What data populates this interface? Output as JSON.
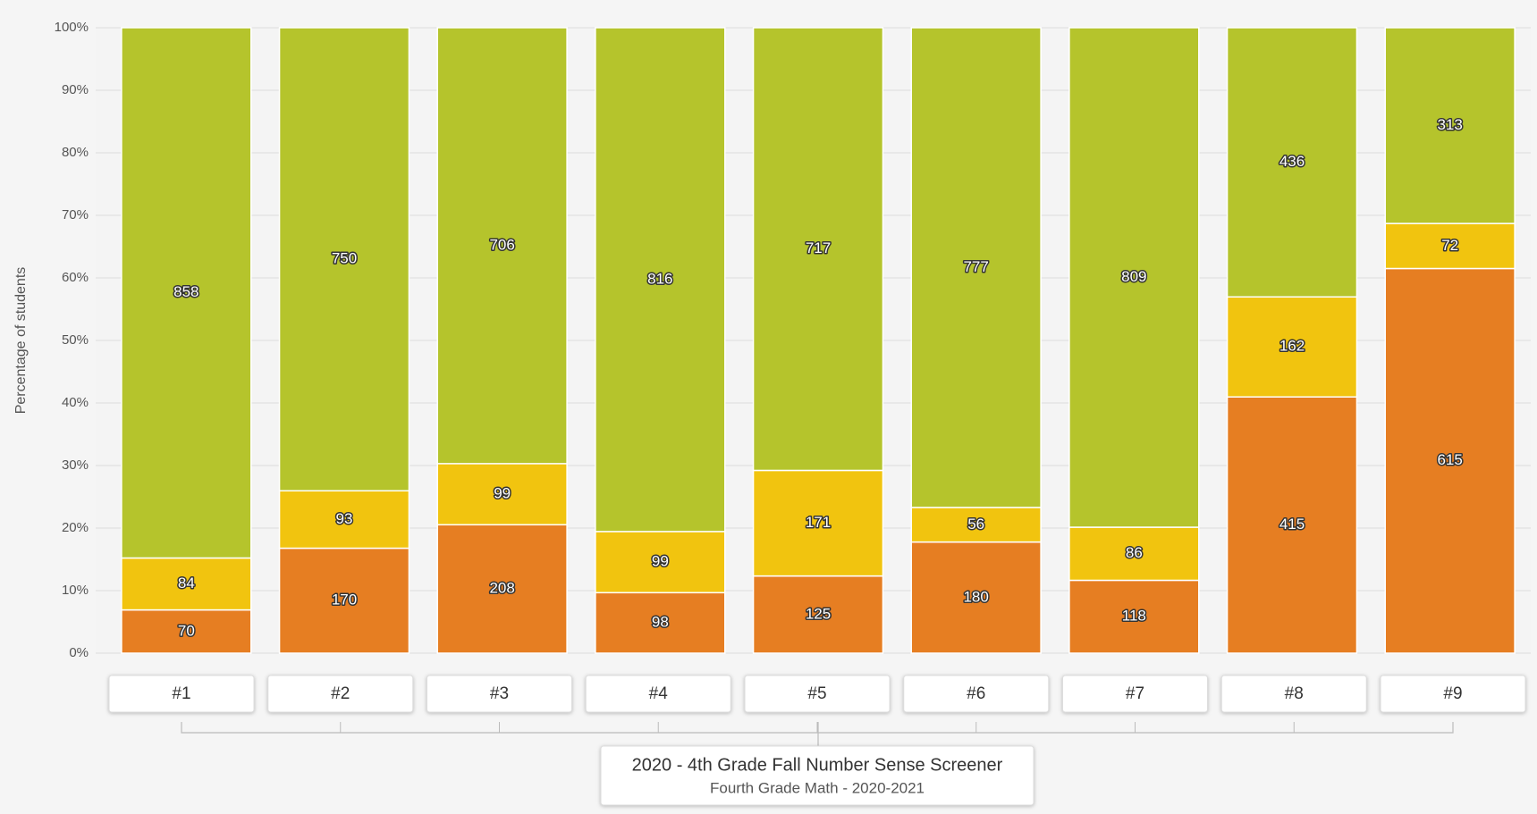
{
  "chart_data": {
    "type": "bar",
    "stacking": "percent",
    "title": "2020 - 4th Grade Fall Number Sense Screener",
    "subtitle": "Fourth Grade Math - 2020-2021",
    "y_label": "Percentage of students",
    "categories": [
      "#1",
      "#2",
      "#3",
      "#4",
      "#5",
      "#6",
      "#7",
      "#8",
      "#9"
    ],
    "series": [
      {
        "color": "#e67e22",
        "values": [
          70,
          170,
          208,
          98,
          125,
          180,
          118,
          415,
          615
        ]
      },
      {
        "color": "#f1c40f",
        "values": [
          84,
          93,
          99,
          99,
          171,
          56,
          86,
          162,
          72
        ]
      },
      {
        "color": "#b5c42c",
        "values": [
          858,
          750,
          706,
          816,
          717,
          777,
          809,
          436,
          313
        ]
      }
    ],
    "ylim": [
      0,
      100
    ],
    "yticks": [
      {
        "value": 0,
        "label": "0%"
      },
      {
        "value": 10,
        "label": "10%"
      },
      {
        "value": 20,
        "label": "20%"
      },
      {
        "value": 30,
        "label": "30%"
      },
      {
        "value": 40,
        "label": "40%"
      },
      {
        "value": 50,
        "label": "50%"
      },
      {
        "value": 60,
        "label": "60%"
      },
      {
        "value": 70,
        "label": "70%"
      },
      {
        "value": 80,
        "label": "80%"
      },
      {
        "value": 90,
        "label": "90%"
      },
      {
        "value": 100,
        "label": "100%"
      }
    ],
    "grid": true
  }
}
